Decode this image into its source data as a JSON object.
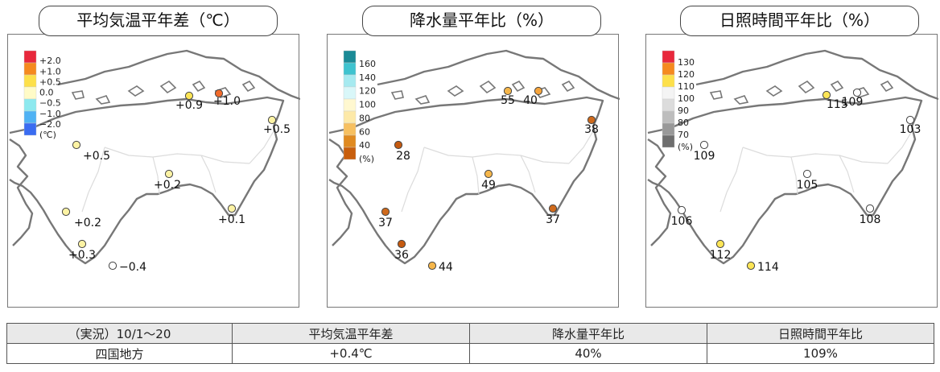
{
  "panels": [
    {
      "id": "temp",
      "title": "平均気温平年差（℃）",
      "legend": {
        "colors": [
          "#e8283c",
          "#f58a1f",
          "#fde04a",
          "#fffbc7",
          "#8de9ef",
          "#4fb2f4",
          "#3a6cf1"
        ],
        "labels": [
          "+2.0",
          "+1.0",
          "+0.5",
          "0.0",
          "−0.5",
          "−1.0",
          "−2.0",
          "(℃)"
        ]
      },
      "stations": [
        {
          "label": "+1.0",
          "color": "#f26b2a"
        },
        {
          "label": "+0.9",
          "color": "#fde556"
        },
        {
          "label": "+0.5",
          "color": "#fdf3a4"
        },
        {
          "label": "+0.5",
          "color": "#fdf3a4"
        },
        {
          "label": "+0.2",
          "color": "#fdf3a4"
        },
        {
          "label": "+0.2",
          "color": "#fdf3a4"
        },
        {
          "label": "+0.1",
          "color": "#fdf3a4"
        },
        {
          "label": "+0.3",
          "color": "#fdf3a4"
        },
        {
          "label": "−0.4",
          "color": "#ffffff"
        }
      ]
    },
    {
      "id": "precip",
      "title": "降水量平年比（%）",
      "legend": {
        "colors": [
          "#1a8a96",
          "#3fc3cf",
          "#a6eaf0",
          "#d9f7f9",
          "#fff8d0",
          "#fde9a8",
          "#f7c060",
          "#e08a20",
          "#c85e0c"
        ],
        "labels": [
          "160",
          "140",
          "120",
          "100",
          "80",
          "60",
          "40",
          "(%)"
        ]
      },
      "stations": [
        {
          "label": "55",
          "color": "#f5b64a"
        },
        {
          "label": "40",
          "color": "#f5a43c"
        },
        {
          "label": "38",
          "color": "#cf6a1c"
        },
        {
          "label": "28",
          "color": "#c55a10"
        },
        {
          "label": "49",
          "color": "#f5b64a"
        },
        {
          "label": "37",
          "color": "#cf6a1c"
        },
        {
          "label": "37",
          "color": "#cf6a1c"
        },
        {
          "label": "36",
          "color": "#c55a10"
        },
        {
          "label": "44",
          "color": "#f5b64a"
        }
      ]
    },
    {
      "id": "sun",
      "title": "日照時間平年比（%）",
      "legend": {
        "colors": [
          "#e8283c",
          "#f58a1f",
          "#fde04a",
          "#f4f4f4",
          "#dcdcdc",
          "#bdbdbd",
          "#999999",
          "#6e6e6e"
        ],
        "labels": [
          "130",
          "120",
          "110",
          "100",
          "90",
          "80",
          "70",
          "(%)"
        ]
      },
      "stations": [
        {
          "label": "115",
          "color": "#fde556"
        },
        {
          "label": "109",
          "color": "#ffffff"
        },
        {
          "label": "103",
          "color": "#ffffff"
        },
        {
          "label": "109",
          "color": "#ffffff"
        },
        {
          "label": "105",
          "color": "#ffffff"
        },
        {
          "label": "106",
          "color": "#ffffff"
        },
        {
          "label": "108",
          "color": "#ffffff"
        },
        {
          "label": "112",
          "color": "#fde556"
        },
        {
          "label": "114",
          "color": "#fde556"
        }
      ]
    }
  ],
  "table": {
    "headers": [
      "（実況）10/1～20",
      "平均気温平年差",
      "降水量平年比",
      "日照時間平年比"
    ],
    "row": [
      "四国地方",
      "+0.4℃",
      "40%",
      "109%"
    ]
  }
}
